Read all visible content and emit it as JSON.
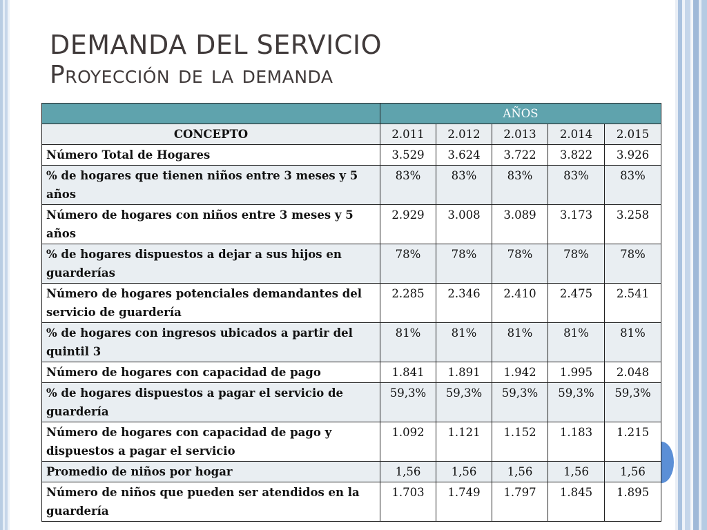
{
  "title": {
    "line1": "DEMANDA DEL SERVICIO",
    "line2": "Proyección de la demanda"
  },
  "table": {
    "years_header": "AÑOS",
    "concept_header": "CONCEPTO",
    "years": [
      "2.011",
      "2.012",
      "2.013",
      "2.014",
      "2.015"
    ],
    "rows": [
      {
        "label": "Número Total de Hogares",
        "values": [
          "3.529",
          "3.624",
          "3.722",
          "3.822",
          "3.926"
        ]
      },
      {
        "label": "% de hogares que tienen niños entre 3 meses y 5 años",
        "values": [
          "83%",
          "83%",
          "83%",
          "83%",
          "83%"
        ]
      },
      {
        "label": "Número de hogares con niños entre 3 meses y 5 años",
        "values": [
          "2.929",
          "3.008",
          "3.089",
          "3.173",
          "3.258"
        ]
      },
      {
        "label": "% de hogares dispuestos a dejar a sus hijos en guarderías",
        "values": [
          "78%",
          "78%",
          "78%",
          "78%",
          "78%"
        ]
      },
      {
        "label": "Número de hogares potenciales demandantes del servicio de guardería",
        "values": [
          "2.285",
          "2.346",
          "2.410",
          "2.475",
          "2.541"
        ]
      },
      {
        "label": "% de hogares con ingresos ubicados a partir del quintil 3",
        "values": [
          "81%",
          "81%",
          "81%",
          "81%",
          "81%"
        ]
      },
      {
        "label": "Número de hogares con capacidad de pago",
        "values": [
          "1.841",
          "1.891",
          "1.942",
          "1.995",
          "2.048"
        ]
      },
      {
        "label": "% de hogares dispuestos a pagar el servicio de guardería",
        "values": [
          "59,3%",
          "59,3%",
          "59,3%",
          "59,3%",
          "59,3%"
        ]
      },
      {
        "label": "Número de hogares con capacidad de pago y dispuestos a pagar el servicio",
        "values": [
          "1.092",
          "1.121",
          "1.152",
          "1.183",
          "1.215"
        ]
      },
      {
        "label": "Promedio de niños por hogar",
        "values": [
          "1,56",
          "1,56",
          "1,56",
          "1,56",
          "1,56"
        ]
      },
      {
        "label": "Número de niños que pueden ser atendidos en la guardería",
        "values": [
          "1.703",
          "1.749",
          "1.797",
          "1.845",
          "1.895"
        ]
      }
    ]
  },
  "colors": {
    "header_band": "#5fa3ad",
    "title_text": "#403a3a",
    "row_shade": "#e9eef2",
    "accent_circle": "#5b8fd6",
    "border_stripe": "#aac2df"
  }
}
